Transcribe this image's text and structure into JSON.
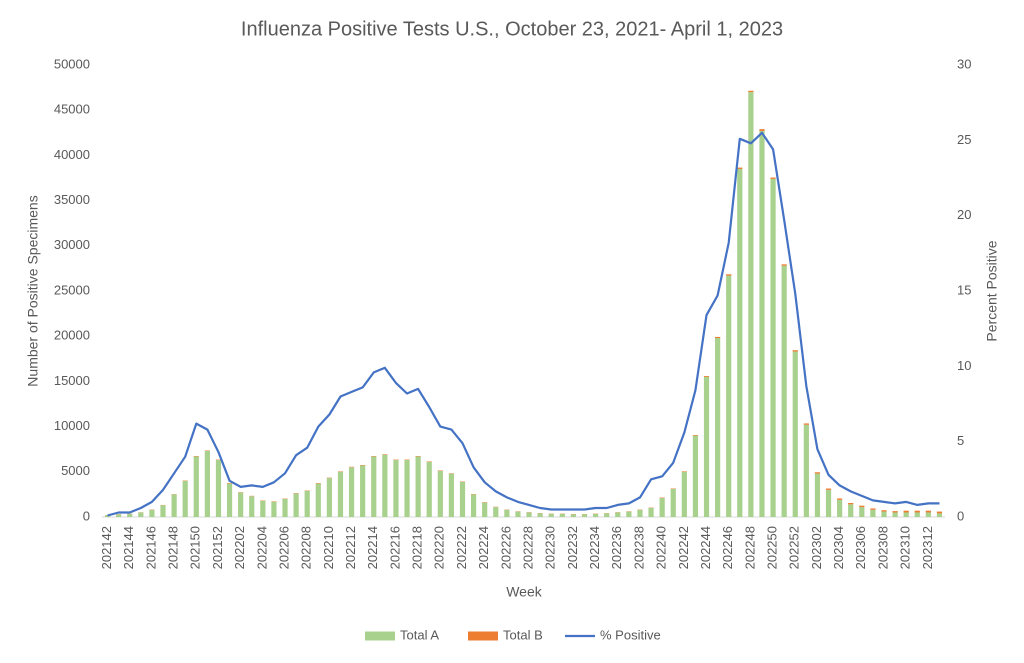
{
  "chart_data": {
    "type": "bar",
    "title": "Influenza Positive Tests U.S., October 23, 2021- April 1, 2023",
    "x_label": "Week",
    "y_label": "Number of Positive Specimens",
    "y2_label": "Percent Positive",
    "categories": [
      "202142",
      null,
      "202144",
      null,
      "202146",
      null,
      "202148",
      null,
      "202150",
      null,
      "202152",
      null,
      "202202",
      null,
      "202204",
      null,
      "202206",
      null,
      "202208",
      null,
      "202210",
      null,
      "202212",
      null,
      "202214",
      null,
      "202216",
      null,
      "202218",
      null,
      "202220",
      null,
      "202222",
      null,
      "202224",
      null,
      "202226",
      null,
      "202228",
      null,
      "202230",
      null,
      "202232",
      null,
      "202234",
      null,
      "202236",
      null,
      "202238",
      null,
      "202240",
      null,
      "202242",
      null,
      "202244",
      null,
      "202246",
      null,
      "202248",
      null,
      "202250",
      null,
      "202252",
      null,
      "202302",
      null,
      "202304",
      null,
      "202306",
      null,
      "202308",
      null,
      "202310",
      null,
      "202312",
      null
    ],
    "series": [
      {
        "name": "Total A",
        "type": "bar",
        "color": "#a9d18e",
        "values": [
          200,
          300,
          350,
          500,
          800,
          1300,
          2500,
          4000,
          6700,
          7300,
          6300,
          3700,
          2700,
          2300,
          1800,
          1700,
          2000,
          2600,
          2900,
          3700,
          4300,
          5000,
          5500,
          5700,
          6700,
          6900,
          6300,
          6300,
          6700,
          6100,
          5100,
          4800,
          3900,
          2500,
          1600,
          1100,
          800,
          600,
          500,
          400,
          350,
          350,
          300,
          300,
          350,
          400,
          500,
          600,
          800,
          1000,
          2100,
          3100,
          5000,
          9000,
          15500,
          19800,
          26700,
          38500,
          47000,
          42700,
          37400,
          27800,
          18300,
          10200,
          4800,
          3000,
          1900,
          1400,
          1100,
          800,
          600,
          500,
          500,
          500,
          500,
          400
        ]
      },
      {
        "name": "Total B",
        "type": "bar",
        "color": "#ed7d31",
        "values": [
          20,
          20,
          20,
          20,
          30,
          30,
          30,
          40,
          50,
          50,
          50,
          50,
          40,
          40,
          40,
          40,
          40,
          40,
          40,
          50,
          50,
          50,
          50,
          50,
          50,
          50,
          50,
          50,
          50,
          50,
          50,
          40,
          40,
          40,
          40,
          30,
          30,
          30,
          30,
          30,
          30,
          30,
          30,
          30,
          30,
          30,
          30,
          30,
          30,
          40,
          50,
          50,
          60,
          70,
          100,
          120,
          150,
          150,
          150,
          200,
          150,
          150,
          150,
          150,
          150,
          150,
          150,
          150,
          150,
          150,
          150,
          150,
          200,
          200,
          200,
          200
        ]
      },
      {
        "name": "% Positive",
        "type": "line",
        "axis": "y2",
        "color": "#4472c4",
        "values": [
          0.1,
          0.3,
          0.3,
          0.6,
          1.0,
          1.8,
          2.9,
          4.0,
          6.2,
          5.8,
          4.3,
          2.4,
          2.0,
          2.1,
          2.0,
          2.3,
          2.9,
          4.1,
          4.6,
          6.0,
          6.8,
          8.0,
          8.3,
          8.6,
          9.6,
          9.9,
          8.9,
          8.2,
          8.5,
          7.3,
          6.0,
          5.8,
          4.9,
          3.3,
          2.3,
          1.7,
          1.3,
          1.0,
          0.8,
          0.6,
          0.5,
          0.5,
          0.5,
          0.5,
          0.6,
          0.6,
          0.8,
          0.9,
          1.3,
          2.5,
          2.7,
          3.6,
          5.6,
          8.4,
          13.4,
          14.7,
          18.2,
          25.1,
          24.8,
          25.5,
          24.4,
          19.7,
          14.8,
          8.7,
          4.5,
          2.8,
          2.1,
          1.7,
          1.4,
          1.1,
          1.0,
          0.9,
          1.0,
          0.8,
          0.9,
          0.9
        ]
      }
    ],
    "ylim": [
      0,
      50000
    ],
    "yticks": [
      0,
      5000,
      10000,
      15000,
      20000,
      25000,
      30000,
      35000,
      40000,
      45000,
      50000
    ],
    "y2lim": [
      0,
      30
    ],
    "y2ticks": [
      0,
      5,
      10,
      15,
      20,
      25,
      30
    ],
    "legend": "bottom",
    "grid": false
  }
}
